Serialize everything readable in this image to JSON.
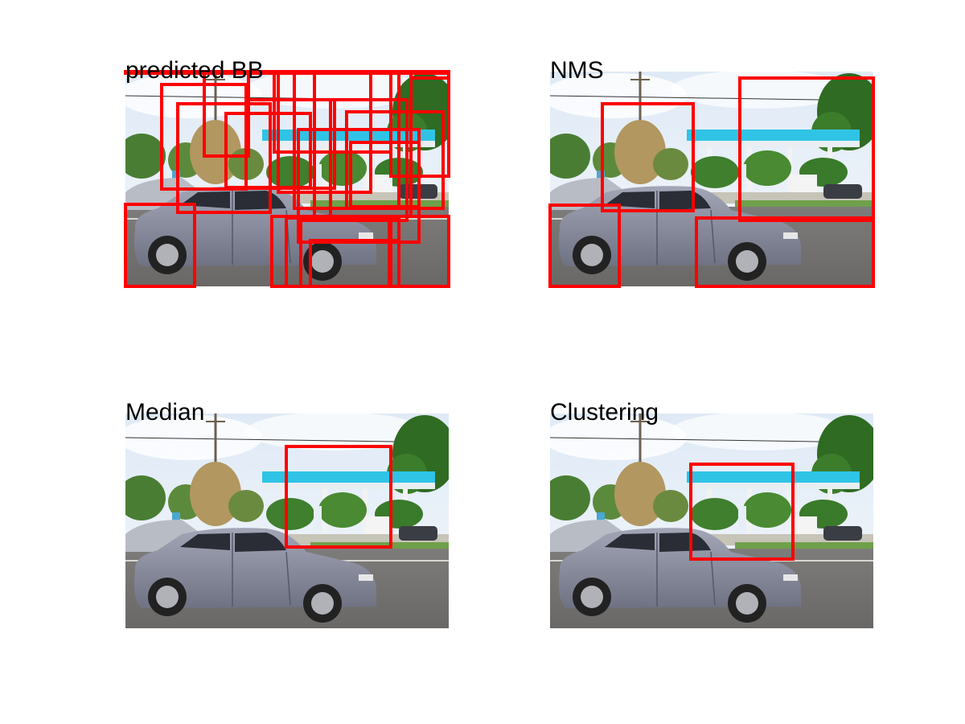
{
  "figure": {
    "panels": [
      {
        "id": "p1",
        "title": "predicted BB",
        "box_color": "#ff0000",
        "box_count": 22
      },
      {
        "id": "p2",
        "title": "NMS",
        "box_color": "#ff0000",
        "box_count": 4
      },
      {
        "id": "p3",
        "title": "Median",
        "box_color": "#ff0000",
        "box_count": 1
      },
      {
        "id": "p4",
        "title": "Clustering",
        "box_color": "#ff0000",
        "box_count": 1
      }
    ]
  }
}
